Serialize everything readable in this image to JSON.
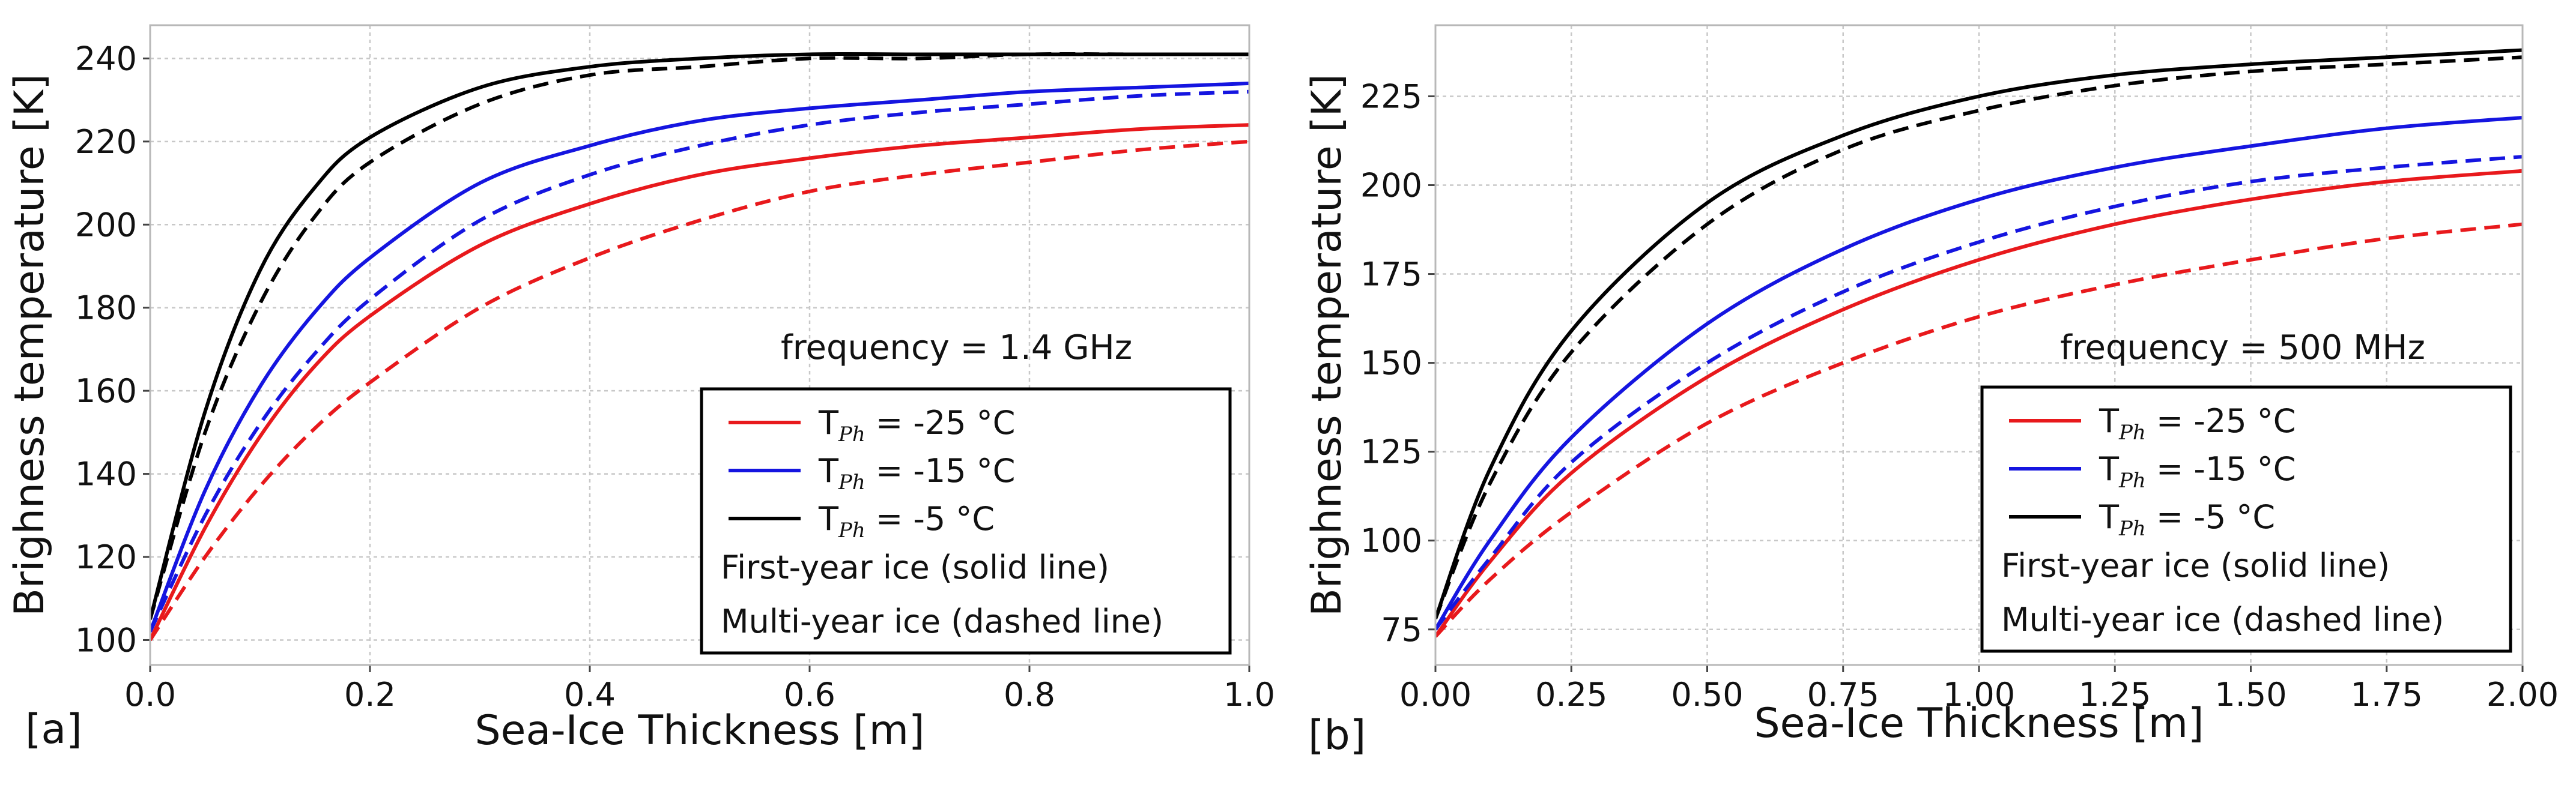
{
  "chart_data": [
    {
      "type": "line",
      "panel_label": "[a]",
      "annotation": "frequency = 1.4 GHz",
      "xlabel": "Sea-Ice Thickness [m]",
      "ylabel": "Brighness temperature [K]",
      "xlim": [
        0.0,
        1.0
      ],
      "ylim": [
        94,
        248
      ],
      "xticks": [
        "0.0",
        "0.2",
        "0.4",
        "0.6",
        "0.8",
        "1.0"
      ],
      "yticks": [
        "100",
        "120",
        "140",
        "160",
        "180",
        "200",
        "220",
        "240"
      ],
      "grid": true,
      "legend_position": "lower-right",
      "legend": {
        "entries": [
          {
            "prefix": "T",
            "sub": "Ph",
            "suffix": "= -25 °C",
            "color": "#e8191c"
          },
          {
            "prefix": "T",
            "sub": "Ph",
            "suffix": "= -15 °C",
            "color": "#1515e0"
          },
          {
            "prefix": "T",
            "sub": "Ph",
            "suffix": "= -5 °C",
            "color": "#000000"
          }
        ],
        "notes": [
          "First-year ice (solid line)",
          "Multi-year ice (dashed line)"
        ]
      },
      "series": [
        {
          "name": "T_Ph = -25 °C, first-year ice",
          "color": "#e8191c",
          "style": "solid",
          "x": [
            0.0,
            0.05,
            0.1,
            0.15,
            0.2,
            0.3,
            0.4,
            0.5,
            0.6,
            0.7,
            0.8,
            0.9,
            1.0
          ],
          "y": [
            100,
            127,
            149,
            166,
            178,
            195,
            205,
            212,
            216,
            219,
            221,
            223,
            224
          ]
        },
        {
          "name": "T_Ph = -25 °C, multi-year ice",
          "color": "#e8191c",
          "style": "dashed",
          "x": [
            0.0,
            0.05,
            0.1,
            0.15,
            0.2,
            0.3,
            0.4,
            0.5,
            0.6,
            0.7,
            0.8,
            0.9,
            1.0
          ],
          "y": [
            100,
            120,
            137,
            151,
            162,
            180,
            192,
            201,
            208,
            212,
            215,
            218,
            220
          ]
        },
        {
          "name": "T_Ph = -15 °C, first-year ice",
          "color": "#1515e0",
          "style": "solid",
          "x": [
            0.0,
            0.05,
            0.1,
            0.15,
            0.2,
            0.3,
            0.4,
            0.5,
            0.6,
            0.7,
            0.8,
            0.9,
            1.0
          ],
          "y": [
            102,
            136,
            161,
            179,
            192,
            210,
            219,
            225,
            228,
            230,
            232,
            233,
            234
          ]
        },
        {
          "name": "T_Ph = -15 °C, multi-year ice",
          "color": "#1515e0",
          "style": "dashed",
          "x": [
            0.0,
            0.05,
            0.1,
            0.15,
            0.2,
            0.3,
            0.4,
            0.5,
            0.6,
            0.7,
            0.8,
            0.9,
            1.0
          ],
          "y": [
            102,
            130,
            152,
            169,
            182,
            201,
            212,
            219,
            224,
            227,
            229,
            231,
            232
          ]
        },
        {
          "name": "T_Ph = -5 °C, first-year ice",
          "color": "#000000",
          "style": "solid",
          "x": [
            0.0,
            0.05,
            0.1,
            0.15,
            0.2,
            0.3,
            0.4,
            0.5,
            0.6,
            0.7,
            0.8,
            0.9,
            1.0
          ],
          "y": [
            105,
            155,
            189,
            209,
            221,
            233,
            238,
            240,
            241,
            241,
            241,
            241,
            241
          ]
        },
        {
          "name": "T_Ph = -5 °C, multi-year ice",
          "color": "#000000",
          "style": "dashed",
          "x": [
            0.0,
            0.05,
            0.1,
            0.15,
            0.2,
            0.3,
            0.4,
            0.5,
            0.6,
            0.7,
            0.8,
            0.9,
            1.0
          ],
          "y": [
            105,
            150,
            181,
            202,
            215,
            229,
            236,
            238,
            240,
            240,
            241,
            241,
            241
          ]
        }
      ]
    },
    {
      "type": "line",
      "panel_label": "[b]",
      "annotation": "frequency = 500 MHz",
      "xlabel": "Sea-Ice Thickness [m]",
      "ylabel": "Brighness temperature [K]",
      "xlim": [
        0.0,
        2.0
      ],
      "ylim": [
        65,
        245
      ],
      "xticks": [
        "0.00",
        "0.25",
        "0.50",
        "0.75",
        "1.00",
        "1.25",
        "1.50",
        "1.75",
        "2.00"
      ],
      "yticks": [
        "75",
        "100",
        "125",
        "150",
        "175",
        "200",
        "225"
      ],
      "grid": true,
      "legend_position": "lower-right",
      "legend": {
        "entries": [
          {
            "prefix": "T",
            "sub": "Ph",
            "suffix": "= -25 °C",
            "color": "#e8191c"
          },
          {
            "prefix": "T",
            "sub": "Ph",
            "suffix": "= -15 °C",
            "color": "#1515e0"
          },
          {
            "prefix": "T",
            "sub": "Ph",
            "suffix": "= -5 °C",
            "color": "#000000"
          }
        ],
        "notes": [
          "First-year ice (solid line)",
          "Multi-year ice (dashed line)"
        ]
      },
      "series": [
        {
          "name": "T_Ph = -25 °C, first-year ice",
          "color": "#e8191c",
          "style": "solid",
          "x": [
            0.0,
            0.1,
            0.25,
            0.5,
            0.75,
            1.0,
            1.25,
            1.5,
            1.75,
            2.0
          ],
          "y": [
            73,
            94,
            119,
            146,
            165,
            179,
            189,
            196,
            201,
            204
          ]
        },
        {
          "name": "T_Ph = -25 °C, multi-year ice",
          "color": "#e8191c",
          "style": "dashed",
          "x": [
            0.0,
            0.1,
            0.25,
            0.5,
            0.75,
            1.0,
            1.25,
            1.5,
            1.75,
            2.0
          ],
          "y": [
            73,
            89,
            108,
            133,
            150,
            163,
            172,
            179,
            185,
            189
          ]
        },
        {
          "name": "T_Ph = -15 °C, first-year ice",
          "color": "#1515e0",
          "style": "solid",
          "x": [
            0.0,
            0.1,
            0.25,
            0.5,
            0.75,
            1.0,
            1.25,
            1.5,
            1.75,
            2.0
          ],
          "y": [
            75,
            100,
            129,
            161,
            182,
            196,
            205,
            211,
            216,
            219
          ]
        },
        {
          "name": "T_Ph = -15 °C, multi-year ice",
          "color": "#1515e0",
          "style": "dashed",
          "x": [
            0.0,
            0.1,
            0.25,
            0.5,
            0.75,
            1.0,
            1.25,
            1.5,
            1.75,
            2.0
          ],
          "y": [
            75,
            95,
            122,
            150,
            170,
            184,
            194,
            201,
            205,
            208
          ]
        },
        {
          "name": "T_Ph = -5 °C, first-year ice",
          "color": "#000000",
          "style": "solid",
          "x": [
            0.0,
            0.1,
            0.25,
            0.5,
            0.75,
            1.0,
            1.25,
            1.5,
            1.75,
            2.0
          ],
          "y": [
            78,
            120,
            159,
            195,
            214,
            225,
            231,
            234,
            236,
            238
          ]
        },
        {
          "name": "T_Ph = -5 °C, multi-year ice",
          "color": "#000000",
          "style": "dashed",
          "x": [
            0.0,
            0.1,
            0.25,
            0.5,
            0.75,
            1.0,
            1.25,
            1.5,
            1.75,
            2.0
          ],
          "y": [
            78,
            116,
            153,
            189,
            210,
            221,
            228,
            232,
            234,
            236
          ]
        }
      ]
    }
  ]
}
